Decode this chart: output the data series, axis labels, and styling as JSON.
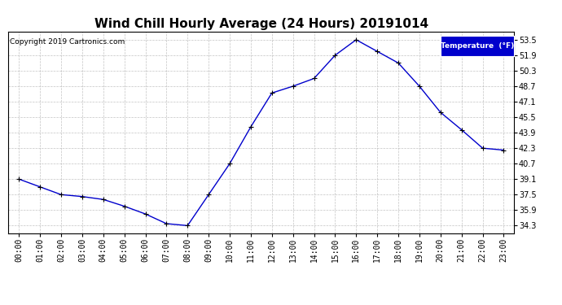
{
  "title": "Wind Chill Hourly Average (24 Hours) 20191014",
  "copyright": "Copyright 2019 Cartronics.com",
  "legend_label": "Temperature  (°F)",
  "hours": [
    "00:00",
    "01:00",
    "02:00",
    "03:00",
    "04:00",
    "05:00",
    "06:00",
    "07:00",
    "08:00",
    "09:00",
    "10:00",
    "11:00",
    "12:00",
    "13:00",
    "14:00",
    "15:00",
    "16:00",
    "17:00",
    "18:00",
    "19:00",
    "20:00",
    "21:00",
    "22:00",
    "23:00"
  ],
  "values": [
    39.1,
    38.3,
    37.5,
    37.3,
    37.0,
    36.3,
    35.5,
    34.5,
    34.3,
    37.5,
    40.7,
    44.5,
    48.0,
    48.7,
    49.5,
    51.9,
    53.5,
    52.3,
    51.1,
    48.7,
    46.0,
    44.2,
    42.3,
    42.1
  ],
  "line_color": "#0000cc",
  "marker_color": "#000000",
  "background_color": "#ffffff",
  "plot_bg_color": "#ffffff",
  "grid_color": "#aaaaaa",
  "ylim": [
    33.5,
    54.3
  ],
  "yticks": [
    34.3,
    35.9,
    37.5,
    39.1,
    40.7,
    42.3,
    43.9,
    45.5,
    47.1,
    48.7,
    50.3,
    51.9,
    53.5
  ],
  "legend_bg": "#0000cc",
  "legend_text_color": "#ffffff",
  "title_fontsize": 11,
  "tick_fontsize": 7,
  "copyright_fontsize": 6.5,
  "border_color": "#000000"
}
